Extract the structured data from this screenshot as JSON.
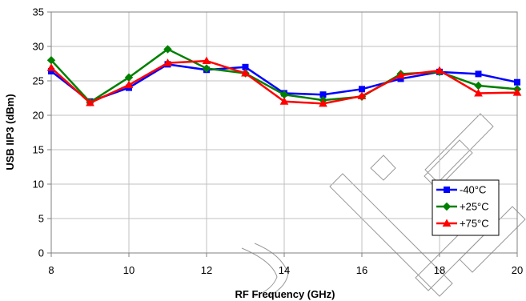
{
  "chart_data": {
    "type": "line",
    "xlabel": "RF Frequency (GHz)",
    "ylabel": "USB IIP3 (dBm)",
    "xlim": [
      8,
      20
    ],
    "ylim": [
      0,
      35
    ],
    "x_ticks": [
      "8",
      "10",
      "12",
      "14",
      "16",
      "18",
      "20"
    ],
    "y_ticks": [
      "0",
      "5",
      "10",
      "15",
      "20",
      "25",
      "30",
      "35"
    ],
    "grid": true,
    "legend_position": "bottom-right",
    "x": [
      8,
      9,
      10,
      11,
      12,
      13,
      14,
      15,
      16,
      17,
      18,
      19,
      20
    ],
    "series": [
      {
        "name": "-40°C",
        "color": "#0000ff",
        "marker": "square",
        "values": [
          26.4,
          22.0,
          24.0,
          27.4,
          26.6,
          27.0,
          23.2,
          23.0,
          23.8,
          25.3,
          26.3,
          26.0,
          24.8
        ]
      },
      {
        "name": "+25°C",
        "color": "#008000",
        "marker": "diamond",
        "values": [
          28.0,
          21.9,
          25.5,
          29.6,
          26.8,
          26.1,
          23.0,
          22.2,
          22.7,
          26.0,
          26.3,
          24.3,
          23.8
        ]
      },
      {
        "name": "+75°C",
        "color": "#ff0000",
        "marker": "triangle",
        "values": [
          26.9,
          21.8,
          24.4,
          27.6,
          27.9,
          26.1,
          22.0,
          21.7,
          22.8,
          25.8,
          26.5,
          23.2,
          23.3
        ]
      }
    ]
  }
}
